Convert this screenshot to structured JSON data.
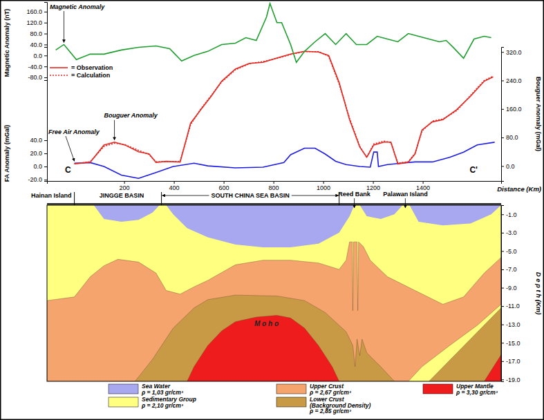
{
  "chart_data": [
    {
      "type": "line",
      "y_label": "Magnetic Anomaly (nT)",
      "ylim": [
        -90,
        195
      ],
      "yticks": [
        {
          "value": -80,
          "label": "-80.0"
        },
        {
          "value": -40,
          "label": "-40.0"
        },
        {
          "value": 0,
          "label": "0.0"
        },
        {
          "value": 40,
          "label": "40.0"
        },
        {
          "value": 80,
          "label": "80.0"
        },
        {
          "value": 120,
          "label": "120.0"
        },
        {
          "value": 160,
          "label": "160.0"
        }
      ],
      "tick_labels": "y",
      "series": [
        {
          "name": "Magnetic Anomaly",
          "color": "#1e9e2e",
          "x": [
            -75,
            -42,
            8,
            64,
            119,
            189,
            258,
            328,
            383,
            431,
            481,
            536,
            592,
            647,
            689,
            731,
            772,
            786,
            814,
            833,
            869,
            892,
            925,
            967,
            1008,
            1050,
            1092,
            1133,
            1175,
            1217,
            1258,
            1300,
            1342,
            1383,
            1425,
            1467,
            1494,
            1522,
            1564,
            1606,
            1647,
            1675
          ],
          "values": [
            20,
            40,
            -15,
            5,
            5,
            20,
            30,
            35,
            25,
            -20,
            0,
            15,
            40,
            45,
            65,
            55,
            140,
            190,
            120,
            120,
            40,
            -25,
            15,
            50,
            80,
            40,
            80,
            40,
            40,
            70,
            60,
            50,
            80,
            70,
            60,
            50,
            55,
            30,
            -10,
            60,
            70,
            65
          ]
        }
      ]
    },
    {
      "type": "line",
      "x_label": "Distance (Km)",
      "y_label": "FA Anomaly (mGal)",
      "y2_label": "Bouguer Anomaly (mGal)",
      "xlim": [
        -110,
        1715
      ],
      "xticks": [
        200,
        400,
        600,
        800,
        1000,
        1200,
        1400
      ],
      "ylim": [
        -22,
        182
      ],
      "yticks": [
        {
          "value": -20,
          "label": "-20.0"
        },
        {
          "value": 0,
          "label": "0.0"
        },
        {
          "value": 20,
          "label": "20.0"
        },
        {
          "value": 40,
          "label": "40.0"
        }
      ],
      "y2lim": [
        -42,
        334
      ],
      "y2ticks": [
        {
          "value": 0,
          "label": "0.0"
        },
        {
          "value": 80,
          "label": "80.0"
        },
        {
          "value": 160,
          "label": "160.0"
        },
        {
          "value": 240,
          "label": "240.0"
        },
        {
          "value": 320,
          "label": "320.0"
        }
      ],
      "legend": "upper left",
      "series": [
        {
          "name": "Free Air Anomaly",
          "color": "#1b1be8",
          "line_style": "solid",
          "x": [
            0,
            64,
            119,
            189,
            258,
            328,
            397,
            481,
            536,
            647,
            758,
            842,
            869,
            925,
            967,
            1008,
            1050,
            1092,
            1147,
            1189,
            1203,
            1217,
            1222,
            1258,
            1314,
            1369,
            1439,
            1508,
            1564,
            1619,
            1689
          ],
          "values": [
            5,
            6,
            0,
            -13,
            -18,
            -9,
            0,
            5,
            1,
            -2,
            -1,
            6,
            18,
            28,
            28,
            19,
            8,
            3,
            0,
            -1,
            22,
            22,
            0,
            3,
            5,
            7,
            7,
            14,
            22,
            33,
            37
          ]
        },
        {
          "name": "= Observation",
          "color": "#e8251f",
          "axis": "y2",
          "line_style": "solid",
          "x": [
            0,
            64,
            119,
            161,
            203,
            258,
            300,
            328,
            369,
            425,
            467,
            508,
            550,
            592,
            647,
            703,
            758,
            814,
            869,
            925,
            981,
            1022,
            1064,
            1106,
            1147,
            1175,
            1203,
            1244,
            1272,
            1300,
            1342,
            1369,
            1397,
            1439,
            1481,
            1536,
            1592,
            1647,
            1683
          ],
          "values": [
            6,
            11,
            59,
            67,
            59,
            40,
            34,
            10,
            13,
            11,
            120,
            158,
            196,
            238,
            272,
            288,
            291,
            303,
            314,
            322,
            320,
            310,
            234,
            130,
            53,
            25,
            59,
            67,
            67,
            6,
            11,
            34,
            101,
            124,
            130,
            158,
            196,
            238,
            250
          ]
        },
        {
          "name": "= Calculation",
          "color": "#e8251f",
          "axis": "y2",
          "line_style": "dotted",
          "x": [
            0,
            64,
            119,
            161,
            203,
            258,
            300,
            328,
            369,
            425,
            467,
            508,
            550,
            592,
            647,
            703,
            758,
            814,
            869,
            925,
            981,
            1022,
            1064,
            1106,
            1147,
            1175,
            1203,
            1244,
            1272,
            1300,
            1342,
            1369,
            1397,
            1439,
            1481,
            1536,
            1592,
            1647,
            1683
          ],
          "values": [
            6,
            12,
            55,
            64,
            60,
            44,
            32,
            12,
            12,
            13,
            116,
            160,
            198,
            236,
            270,
            287,
            293,
            302,
            313,
            321,
            321,
            308,
            230,
            134,
            55,
            24,
            62,
            70,
            66,
            8,
            12,
            36,
            98,
            126,
            132,
            155,
            198,
            240,
            252
          ]
        }
      ],
      "annotations": [
        {
          "text": "Bouguer Anomaly",
          "x": 161,
          "y": 67,
          "axis": "y2"
        },
        {
          "text": "C",
          "x": 0
        },
        {
          "text": "C'",
          "x": 1580
        }
      ]
    },
    {
      "type": "area",
      "y_label": "D e p t h   (Km)",
      "xlim": [
        -110,
        1715
      ],
      "ylim": [
        -19.2,
        0
      ],
      "yticks": [
        {
          "value": -1,
          "label": "-1.0"
        },
        {
          "value": -3,
          "label": "-3.0"
        },
        {
          "value": -5,
          "label": "-5.0"
        },
        {
          "value": -7,
          "label": "-7.0"
        },
        {
          "value": -9,
          "label": "-9.0"
        },
        {
          "value": -11,
          "label": "-11.0"
        },
        {
          "value": -13,
          "label": "-13.0"
        },
        {
          "value": -15,
          "label": "-15.0"
        },
        {
          "value": -17,
          "label": "-17.0"
        },
        {
          "value": -19,
          "label": "-19.0"
        }
      ],
      "tick_labels": "y",
      "legend": "bottom",
      "series": [
        {
          "name": "Sea Water",
          "density": "ρ = 1,03 gr/cm³",
          "color": "#a8a8f0",
          "polygons": [
            {
              "x": [
                -110,
                78,
                119,
                189,
                258,
                314,
                342,
                369,
                397,
                453,
                536,
                647,
                758,
                869,
                981,
                1064,
                1106,
                1125,
                1147,
                1175,
                1231,
                1286,
                1319,
                1347,
                1383,
                1481,
                1592,
                1675,
                1715
              ],
              "values": [
                0,
                0,
                -1.5,
                -1.8,
                -1.6,
                -0.8,
                0,
                0,
                -1.0,
                -2.5,
                -3.5,
                -4.3,
                -4.6,
                -4.6,
                -4.2,
                -3.0,
                -1.2,
                0,
                0,
                -1.2,
                -1.5,
                -1.0,
                0,
                0,
                -1.8,
                -2.2,
                -2.0,
                -1.0,
                0
              ]
            }
          ]
        },
        {
          "name": "Sedimentary Group",
          "density": "ρ = 2,10 gr/cm³",
          "color": "#ffff80",
          "polygons": [
            {
              "x": [
                -110,
                1715,
                1715,
                -110
              ],
              "values": [
                0,
                0,
                -19.2,
                -19.2
              ]
            }
          ]
        },
        {
          "name": "Upper Crust",
          "density": "ρ = 2,67 gr/cm³",
          "color": "#f5a46e",
          "polygons": [
            {
              "x": [
                -110,
                0,
                64,
                119,
                175,
                258,
                328,
                369,
                425,
                481,
                536,
                647,
                758,
                869,
                981,
                1064,
                1092,
                1106,
                1117,
                1119,
                1122,
                1136,
                1139,
                1142,
                1161,
                1189,
                1258,
                1369,
                1481,
                1564,
                1647,
                1715,
                1715,
                1619,
                1508,
                1397,
                1342,
                -110
              ],
              "values": [
                -10.4,
                -10.0,
                -7.8,
                -6.6,
                -5.9,
                -6.2,
                -7.4,
                -9.3,
                -9.7,
                -8.9,
                -8.2,
                -6.5,
                -6.0,
                -6.0,
                -6.3,
                -7.0,
                -6.0,
                -4.0,
                -4.0,
                -11.5,
                -4.0,
                -4.0,
                -11.5,
                -4.0,
                -4.5,
                -6.0,
                -7.8,
                -9.3,
                -10.8,
                -10.0,
                -7.4,
                -5.7,
                -10.8,
                -13.1,
                -15.3,
                -17.6,
                -19.2,
                -19.2
              ]
            }
          ]
        },
        {
          "name": "Lower Crust (Background Density)",
          "density": "ρ = 2,85 gr/cm³",
          "color": "#c99a45",
          "polygons": [
            {
              "x": [
                244,
                314,
                397,
                481,
                536,
                647,
                814,
                925,
                1008,
                1092,
                1119,
                1128,
                1136,
                1147,
                1156,
                1175,
                1231,
                1286
              ],
              "values": [
                -19.2,
                -16.8,
                -13.4,
                -11.2,
                -10.3,
                -9.8,
                -9.9,
                -10.4,
                -11.7,
                -13.8,
                -15.3,
                -17.6,
                -14.6,
                -16.4,
                -14.6,
                -16.1,
                -17.6,
                -19.2
              ]
            },
            {
              "x": [
                1425,
                1715,
                1715
              ],
              "values": [
                -19.2,
                -11.2,
                -19.2
              ]
            }
          ]
        },
        {
          "name": "Upper Mantle",
          "density": "ρ = 3,30 gr/cm³",
          "color": "#ee1c1c",
          "polygons": [
            {
              "x": [
                453,
                481,
                536,
                592,
                647,
                731,
                814,
                869,
                925,
                981,
                1036,
                1064
              ],
              "values": [
                -19.2,
                -17.6,
                -15.3,
                -13.7,
                -12.7,
                -12.2,
                -12.0,
                -12.3,
                -13.4,
                -15.3,
                -17.6,
                -19.2
              ]
            },
            {
              "x": [
                1647,
                1715,
                1715
              ],
              "values": [
                -19.2,
                -16.3,
                -19.2
              ]
            }
          ]
        }
      ],
      "annotations": [
        {
          "text": "Hainan Island",
          "x": 0,
          "marker": "tick"
        },
        {
          "text": "JINGGE BASIN",
          "x": 190
        },
        {
          "text": "SOUTH CHINA SEA BASIN",
          "x_range": [
            350,
            1064
          ]
        },
        {
          "text": "Reed Bank",
          "x": 1125,
          "marker": "arrow"
        },
        {
          "text": "Palawan Island",
          "x": 1330,
          "marker": "arrow"
        },
        {
          "text": "M o h o",
          "x": 772,
          "y": -13.2
        }
      ]
    }
  ]
}
